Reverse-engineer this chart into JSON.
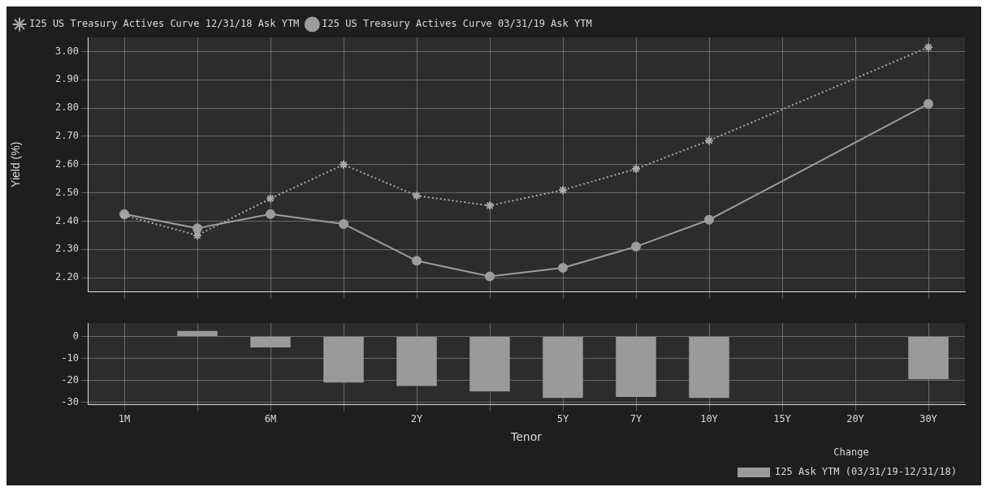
{
  "chart_data": [
    {
      "type": "line",
      "ylabel": "Yield (%)",
      "categories": [
        null,
        null,
        null,
        null,
        null,
        null,
        null,
        null,
        null,
        null,
        null,
        null
      ],
      "series": [
        {
          "name": "I25 US Treasury Actives Curve 12/31/18 Ask YTM",
          "color": "#a8a8a8",
          "marker": "cross",
          "line_style": "dotted",
          "values": [
            2.42,
            2.35,
            2.48,
            2.6,
            2.49,
            2.455,
            2.51,
            2.585,
            2.685,
            null,
            null,
            3.015
          ]
        },
        {
          "name": "I25 US Treasury Actives Curve 03/31/19 Ask YTM",
          "color": "#9c9c9c",
          "marker": "circle",
          "line_style": "solid",
          "values": [
            2.425,
            2.375,
            2.425,
            2.39,
            2.26,
            2.205,
            2.235,
            2.31,
            2.405,
            null,
            null,
            2.815
          ]
        }
      ],
      "ylim": [
        2.15,
        3.05
      ],
      "yticks": [
        {
          "value": 2.2,
          "label": "2.20"
        },
        {
          "value": 2.3,
          "label": "2.30"
        },
        {
          "value": 2.4,
          "label": "2.40"
        },
        {
          "value": 2.5,
          "label": "2.50"
        },
        {
          "value": 2.6,
          "label": "2.60"
        },
        {
          "value": 2.7,
          "label": "2.70"
        },
        {
          "value": 2.8,
          "label": "2.80"
        },
        {
          "value": 2.9,
          "label": "2.90"
        },
        {
          "value": 3.0,
          "label": "3.00"
        }
      ],
      "grid": true,
      "legend": "top left"
    },
    {
      "type": "bar",
      "xlabel": "Tenor",
      "legend_title": "Change",
      "categories": [
        "1M",
        null,
        "6M",
        null,
        "2Y",
        null,
        "5Y",
        "7Y",
        "10Y",
        "15Y",
        "20Y",
        "30Y"
      ],
      "series": [
        {
          "name": "I25 Ask YTM (03/31/19-12/31/18)",
          "color": "#9a9a9a",
          "values": [
            null,
            2.5,
            -5,
            -21,
            -22.5,
            -25,
            -28,
            -27.5,
            -28,
            null,
            null,
            -19.5
          ]
        }
      ],
      "ylim": [
        -31,
        6
      ],
      "yticks": [
        -30,
        -20,
        -10,
        0
      ],
      "grid": true,
      "legend": "bottom right"
    }
  ]
}
